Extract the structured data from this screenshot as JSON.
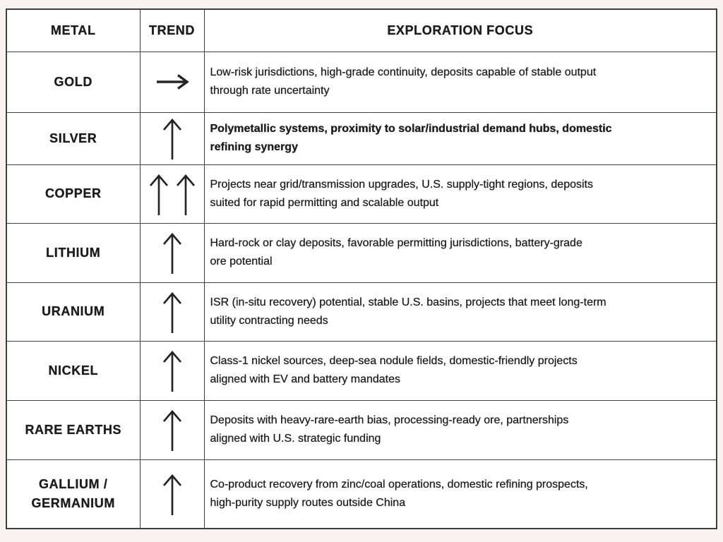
{
  "theme": {
    "background_color": "#f7f1ef",
    "cell_background_color": "#ffffff",
    "border_color": "#3e3e3e",
    "text_color": "#1c1c1c",
    "arrow_color": "#242424"
  },
  "table": {
    "headers": [
      {
        "label": "METAL"
      },
      {
        "label": "TREND"
      },
      {
        "label": "EXPLORATION FOCUS"
      }
    ],
    "rows": [
      {
        "metal": "GOLD",
        "trend": "right",
        "trend_symbol": "→",
        "focus": "Low-risk jurisdictions, high-grade continuity, deposits capable of stable output\nthrough rate uncertainty",
        "bold": false
      },
      {
        "metal": "SILVER",
        "trend": "up",
        "trend_symbol": "↑",
        "focus": "Polymetallic systems, proximity to solar/industrial demand hubs, domestic\nrefining synergy",
        "bold": true
      },
      {
        "metal": "COPPER",
        "trend": "up-double",
        "trend_symbol": "↑↑",
        "focus": "Projects near grid/transmission upgrades, U.S. supply-tight regions, deposits\nsuited for rapid permitting and scalable output",
        "bold": false
      },
      {
        "metal": "LITHIUM",
        "trend": "up",
        "trend_symbol": "↑",
        "focus": "Hard-rock or clay deposits, favorable permitting jurisdictions, battery-grade\nore potential",
        "bold": false
      },
      {
        "metal": "URANIUM",
        "trend": "up",
        "trend_symbol": "↑",
        "focus": "ISR (in-situ recovery) potential, stable U.S. basins, projects that meet long-term\nutility contracting needs",
        "bold": false
      },
      {
        "metal": "NICKEL",
        "trend": "up",
        "trend_symbol": "↑",
        "focus": "Class-1 nickel sources, deep-sea nodule fields, domestic-friendly projects\naligned with EV and battery mandates",
        "bold": false
      },
      {
        "metal": "RARE EARTHS",
        "trend": "up",
        "trend_symbol": "↑",
        "focus": "Deposits with heavy-rare-earth bias, processing-ready ore, partnerships\naligned with U.S. strategic funding",
        "bold": false
      },
      {
        "metal": "GALLIUM /\nGERMANIUM",
        "trend": "up",
        "trend_symbol": "↑",
        "focus": "Co-product recovery from zinc/coal operations, domestic refining prospects,\nhigh-purity supply routes outside China",
        "bold": false
      }
    ]
  }
}
